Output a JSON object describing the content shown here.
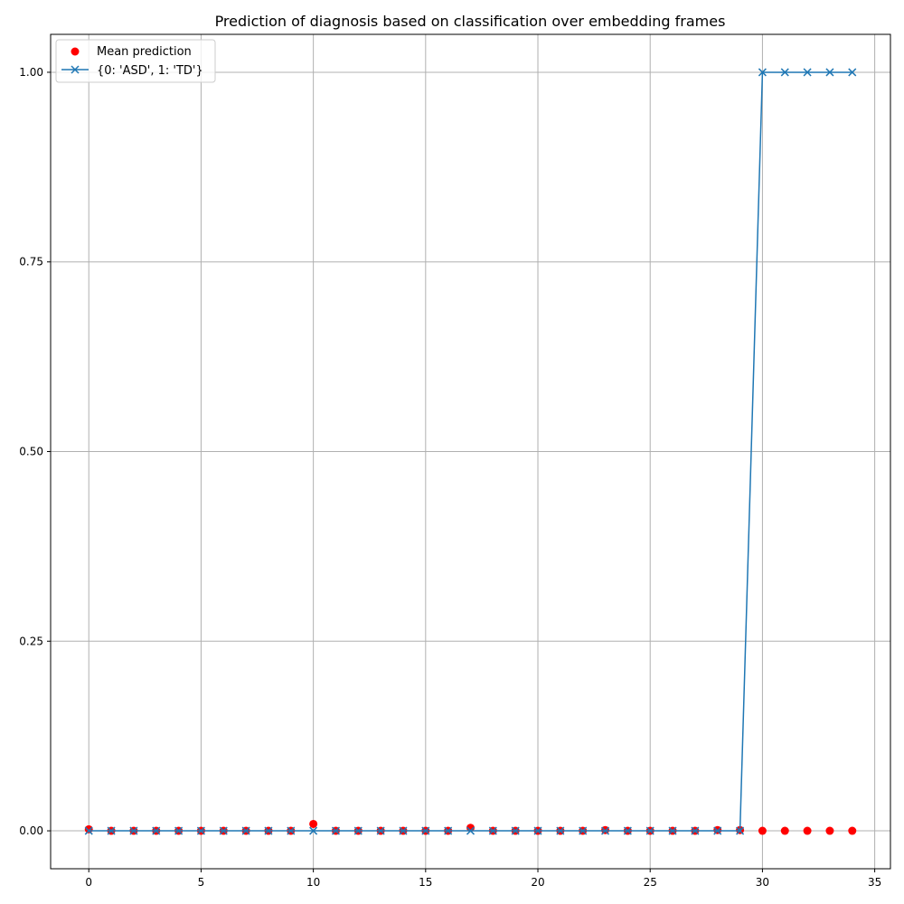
{
  "chart_data": {
    "type": "scatter",
    "title": "Prediction of diagnosis based on classification over embedding frames",
    "xlabel": "",
    "ylabel": "",
    "xlim": [
      -1.7,
      35.7
    ],
    "ylim": [
      -0.05,
      1.05
    ],
    "x_ticks": [
      0,
      5,
      10,
      15,
      20,
      25,
      30,
      35
    ],
    "x_tick_labels": [
      "0",
      "5",
      "10",
      "15",
      "20",
      "25",
      "30",
      "35"
    ],
    "y_ticks": [
      0.0,
      0.25,
      0.5,
      0.75,
      1.0
    ],
    "y_tick_labels": [
      "0.00",
      "0.25",
      "0.50",
      "0.75",
      "1.00"
    ],
    "grid": true,
    "legend_position": "top-left",
    "series": [
      {
        "name": "Mean prediction",
        "kind": "scatter",
        "color": "#ff0000",
        "marker": "circle",
        "x": [
          0,
          1,
          2,
          3,
          4,
          5,
          6,
          7,
          8,
          9,
          10,
          11,
          12,
          13,
          14,
          15,
          16,
          17,
          18,
          19,
          20,
          21,
          22,
          23,
          24,
          25,
          26,
          27,
          28,
          29,
          30,
          31,
          32,
          33,
          34
        ],
        "y": [
          0.002,
          0,
          0,
          0,
          0,
          0,
          0,
          0,
          0,
          0,
          0.009,
          0,
          0,
          0,
          0,
          0,
          0,
          0.004,
          0,
          0,
          0,
          0,
          0,
          0.001,
          0,
          0,
          0,
          0,
          0.001,
          0.001,
          0,
          0,
          0,
          0,
          0
        ]
      },
      {
        "name": "{0: 'ASD', 1: 'TD'}",
        "kind": "line",
        "color": "#1f77b4",
        "marker": "x",
        "x": [
          0,
          1,
          2,
          3,
          4,
          5,
          6,
          7,
          8,
          9,
          10,
          11,
          12,
          13,
          14,
          15,
          16,
          17,
          18,
          19,
          20,
          21,
          22,
          23,
          24,
          25,
          26,
          27,
          28,
          29,
          30,
          31,
          32,
          33,
          34
        ],
        "y": [
          0,
          0,
          0,
          0,
          0,
          0,
          0,
          0,
          0,
          0,
          0,
          0,
          0,
          0,
          0,
          0,
          0,
          0,
          0,
          0,
          0,
          0,
          0,
          0,
          0,
          0,
          0,
          0,
          0,
          0,
          1,
          1,
          1,
          1,
          1
        ]
      }
    ]
  }
}
